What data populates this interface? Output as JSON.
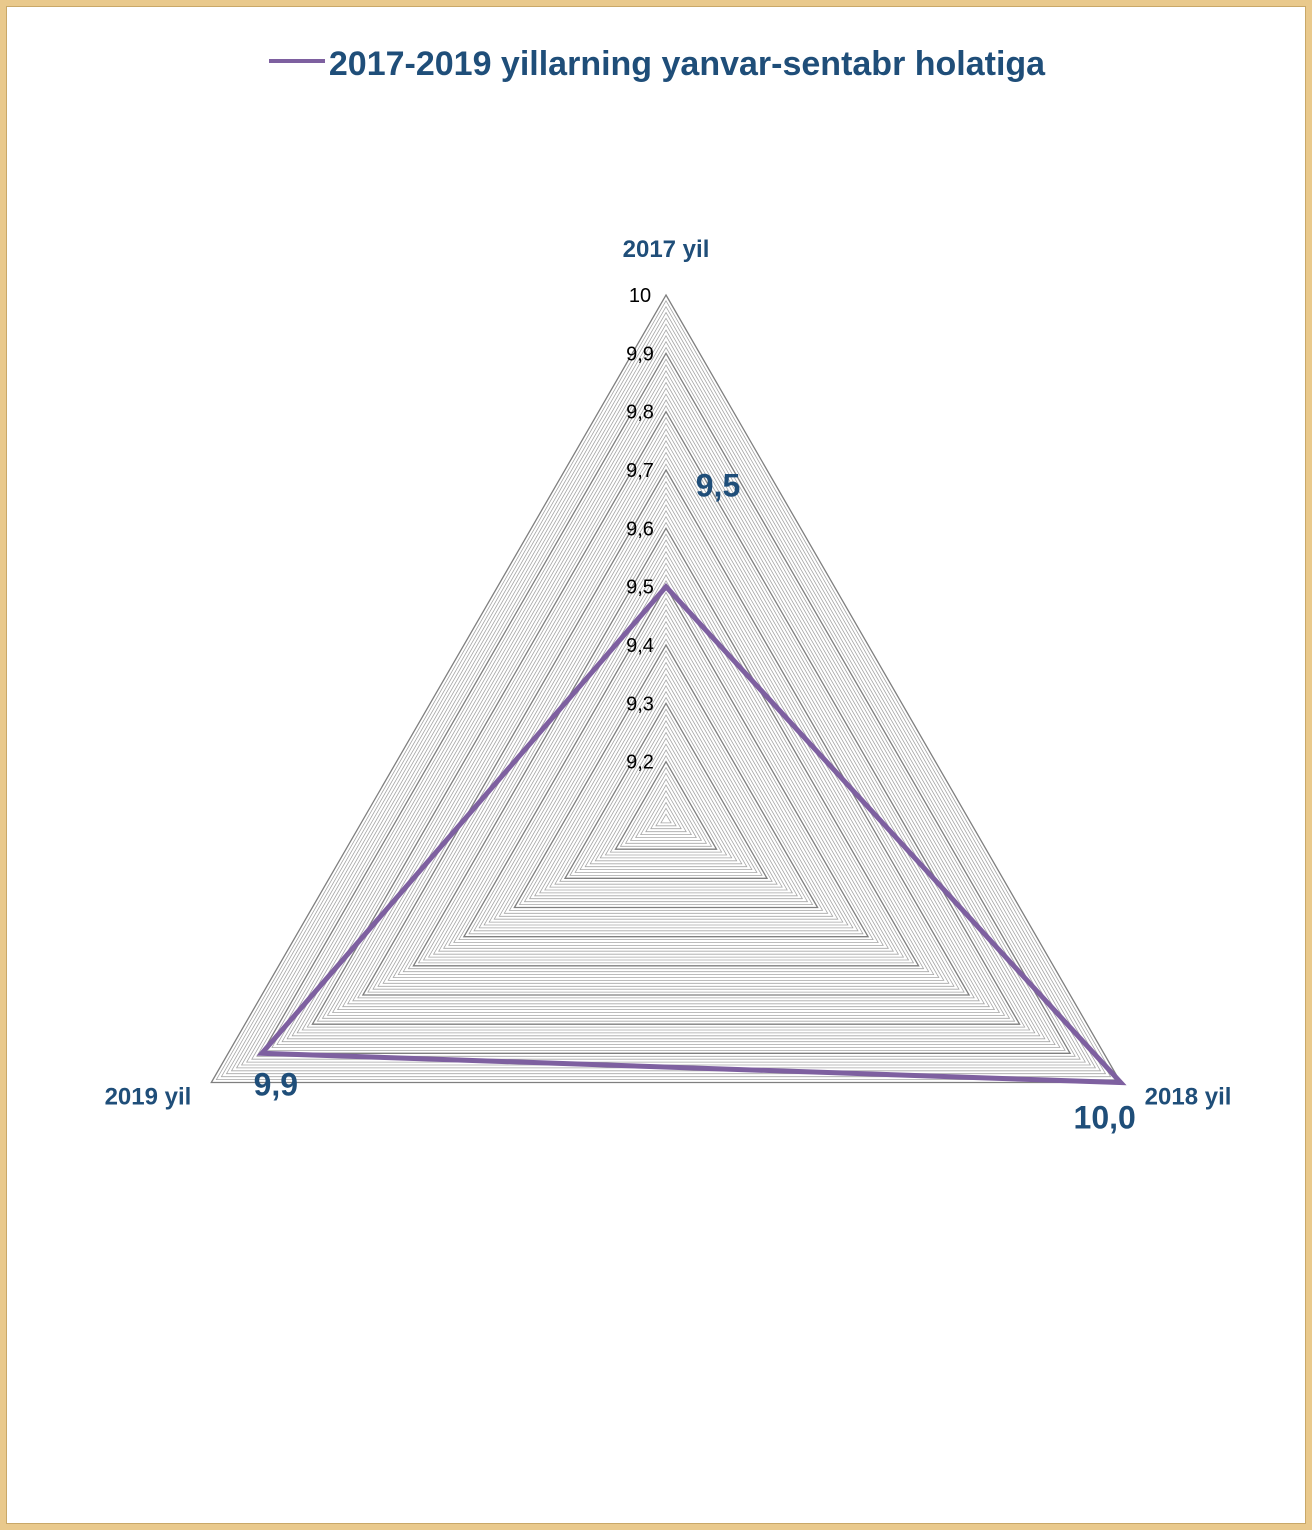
{
  "colors": {
    "series": "#7e60a0",
    "labels": "#1f4e79",
    "grid": "#a6a6a6",
    "grid_major": "#7f7f7f",
    "frame_bg": "#e9c98c"
  },
  "chart_data": {
    "type": "radar",
    "categories": [
      "2017 yil",
      "2018 yil",
      "2019 yil"
    ],
    "series": [
      {
        "name": "2017-2019 yillarning yanvar-sentabr holatiga",
        "values": [
          9.5,
          10.0,
          9.9
        ],
        "value_labels": [
          "9,5",
          "10,0",
          "9,9"
        ]
      }
    ],
    "rlim": [
      9.1,
      10.0
    ],
    "r_ticks": [
      "9,2",
      "9,3",
      "9,4",
      "9,5",
      "9,6",
      "9,7",
      "9,8",
      "9,9",
      "10"
    ],
    "r_tick_values": [
      9.2,
      9.3,
      9.4,
      9.5,
      9.6,
      9.7,
      9.8,
      9.9,
      10.0
    ],
    "minor_grid_step": 0.01,
    "legend_position": "top",
    "grid": true
  }
}
